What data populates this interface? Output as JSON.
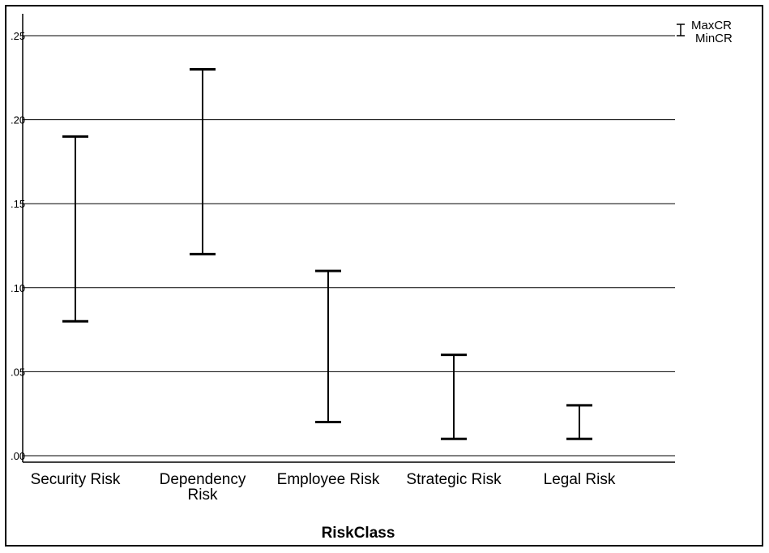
{
  "chart_data": {
    "type": "range-bar",
    "xlabel": "RiskClass",
    "ylabel": "",
    "ylim": [
      0,
      0.25
    ],
    "yticks": [
      0.0,
      0.05,
      0.1,
      0.15,
      0.2,
      0.25
    ],
    "ytick_labels": [
      ".00",
      ".05",
      ".10",
      ".15",
      ".20",
      ".25"
    ],
    "categories": [
      {
        "label_lines": [
          "Security Risk"
        ],
        "min": 0.08,
        "max": 0.19
      },
      {
        "label_lines": [
          "Dependency",
          "Risk"
        ],
        "min": 0.12,
        "max": 0.23
      },
      {
        "label_lines": [
          "Employee Risk"
        ],
        "min": 0.02,
        "max": 0.11
      },
      {
        "label_lines": [
          "Strategic Risk"
        ],
        "min": 0.01,
        "max": 0.06
      },
      {
        "label_lines": [
          "Legal Risk"
        ],
        "min": 0.01,
        "max": 0.03
      }
    ],
    "legend": {
      "max_label": "MaxCR",
      "min_label": "MinCR",
      "position": "top-right"
    },
    "grid": true,
    "colors": {
      "line": "#000000",
      "grid": "#000000"
    }
  }
}
